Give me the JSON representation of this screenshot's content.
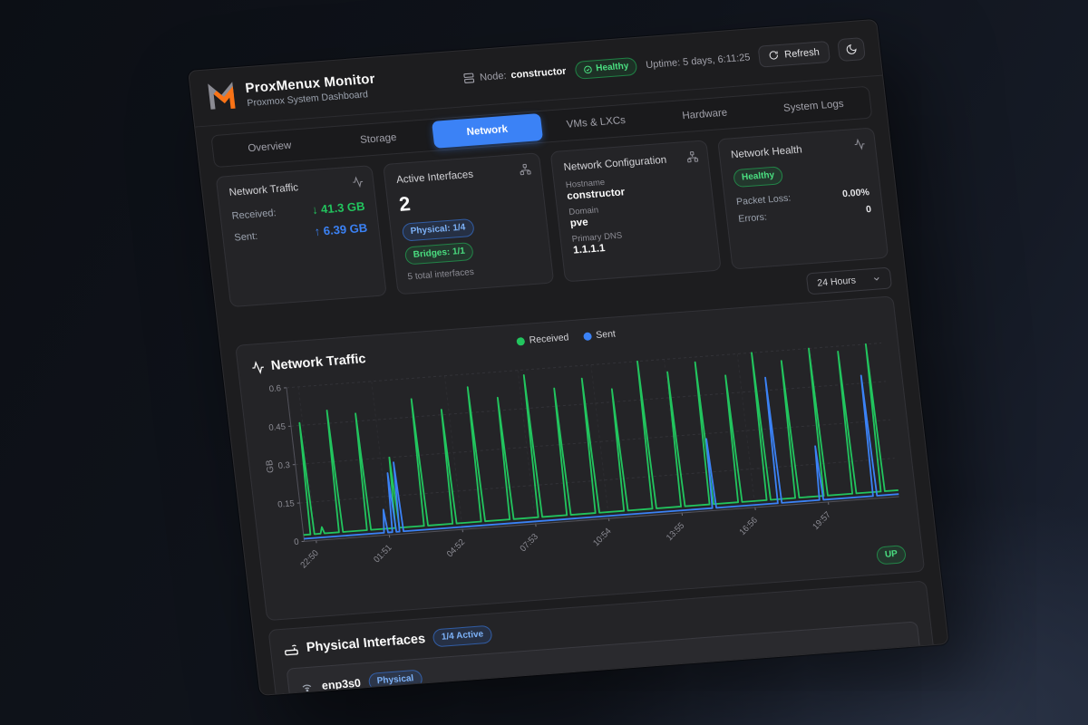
{
  "header": {
    "title": "ProxMenux Monitor",
    "subtitle": "Proxmox System Dashboard",
    "node_label": "Node:",
    "node_value": "constructor",
    "health_badge": "Healthy",
    "uptime": "Uptime: 5 days, 6:11:25",
    "refresh_label": "Refresh"
  },
  "tabs": [
    {
      "label": "Overview"
    },
    {
      "label": "Storage"
    },
    {
      "label": "Network"
    },
    {
      "label": "VMs & LXCs"
    },
    {
      "label": "Hardware"
    },
    {
      "label": "System Logs"
    }
  ],
  "stats": {
    "traffic": {
      "title": "Network Traffic",
      "rows": [
        {
          "label": "Received:",
          "value": "↓ 41.3 GB"
        },
        {
          "label": "Sent:",
          "value": "↑ 6.39 GB"
        }
      ]
    },
    "interfaces": {
      "title": "Active Interfaces",
      "count": "2",
      "badges": [
        {
          "label": "Physical: 1/4"
        },
        {
          "label": "Bridges: 1/1"
        }
      ],
      "footnote": "5 total interfaces"
    },
    "config": {
      "title": "Network Configuration",
      "fields": [
        {
          "label": "Hostname",
          "value": "constructor"
        },
        {
          "label": "Domain",
          "value": "pve"
        },
        {
          "label": "Primary DNS",
          "value": "1.1.1.1"
        }
      ]
    },
    "health": {
      "title": "Network Health",
      "badge": "Healthy",
      "rows": [
        {
          "label": "Packet Loss:",
          "value": "0.00%"
        },
        {
          "label": "Errors:",
          "value": "0"
        }
      ]
    }
  },
  "toolbar": {
    "range": "24 Hours"
  },
  "chart_card": {
    "title": "Network Traffic",
    "status_badge": "UP",
    "legend": [
      {
        "label": "Received",
        "color": "#22c55e"
      },
      {
        "label": "Sent",
        "color": "#3b82f6"
      }
    ]
  },
  "chart_data": {
    "type": "line",
    "title": "Network Traffic",
    "ylabel": "GB",
    "ylim": [
      0,
      0.6
    ],
    "yticks": [
      0,
      0.15,
      0.3,
      0.45,
      0.6
    ],
    "grid": "dashed",
    "legend_position": "top-center",
    "x_labels": [
      "22:50",
      "01:51",
      "04:52",
      "07:53",
      "10:54",
      "13:55",
      "16:56",
      "19:57"
    ],
    "series": [
      {
        "name": "Received",
        "color": "#22c55e",
        "baseline_gb": 0.025,
        "spikes": [
          {
            "x": 1.5,
            "gb": 0.46
          },
          {
            "x": 3.2,
            "gb": 0.05
          },
          {
            "x": 6.3,
            "gb": 0.5
          },
          {
            "x": 11,
            "gb": 0.48
          },
          {
            "x": 15.8,
            "gb": 0.3
          },
          {
            "x": 20.6,
            "gb": 0.52
          },
          {
            "x": 25.4,
            "gb": 0.47
          },
          {
            "x": 30.2,
            "gb": 0.55
          },
          {
            "x": 35,
            "gb": 0.5
          },
          {
            "x": 39.8,
            "gb": 0.58
          },
          {
            "x": 44.6,
            "gb": 0.52
          },
          {
            "x": 49.4,
            "gb": 0.55
          },
          {
            "x": 54.2,
            "gb": 0.5
          },
          {
            "x": 59,
            "gb": 0.6
          },
          {
            "x": 63.8,
            "gb": 0.55
          },
          {
            "x": 68.6,
            "gb": 0.58
          },
          {
            "x": 73.4,
            "gb": 0.52
          },
          {
            "x": 78.2,
            "gb": 0.6
          },
          {
            "x": 83,
            "gb": 0.56
          },
          {
            "x": 87.8,
            "gb": 0.6
          },
          {
            "x": 92.6,
            "gb": 0.58
          },
          {
            "x": 97.4,
            "gb": 0.6
          }
        ]
      },
      {
        "name": "Sent",
        "color": "#3b82f6",
        "baseline_gb": 0.01,
        "spikes": [
          {
            "x": 13.8,
            "gb": 0.1
          },
          {
            "x": 15.2,
            "gb": 0.24
          },
          {
            "x": 16.4,
            "gb": 0.28
          },
          {
            "x": 69,
            "gb": 0.28
          },
          {
            "x": 80,
            "gb": 0.5
          },
          {
            "x": 87,
            "gb": 0.22
          },
          {
            "x": 96,
            "gb": 0.48
          }
        ]
      }
    ]
  },
  "physical": {
    "title": "Physical Interfaces",
    "active_badge": "1/4 Active",
    "rows": [
      {
        "name": "enp3s0",
        "badge": "Physical"
      }
    ]
  },
  "colors": {
    "accent_blue": "#3b82f6",
    "green": "#22c55e",
    "panel_bg": "#1d1d1f",
    "card_bg": "#242427"
  }
}
